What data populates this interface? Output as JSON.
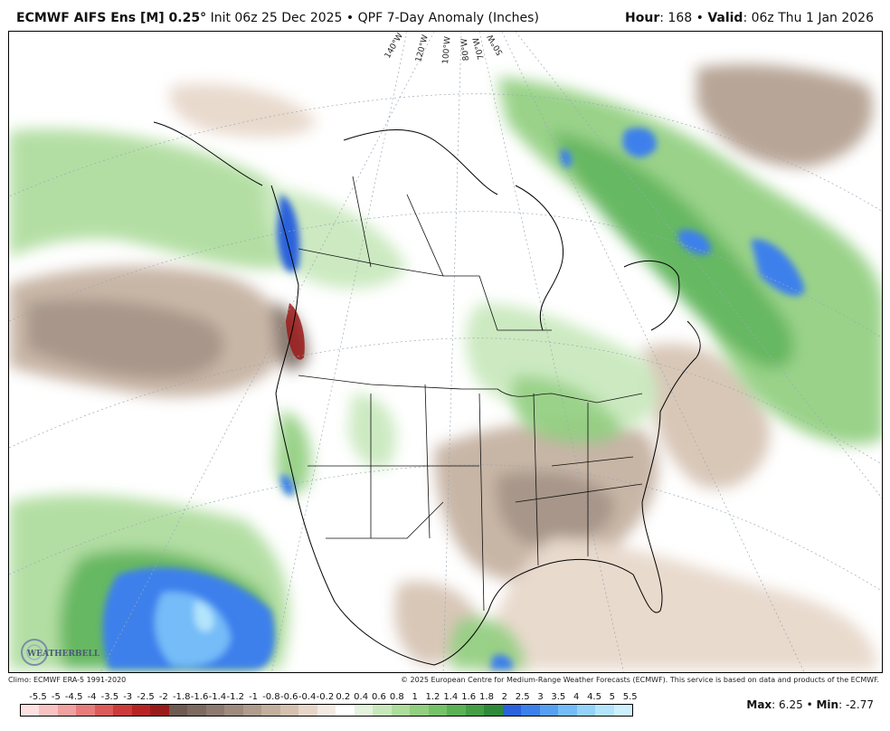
{
  "header": {
    "model": "ECMWF AIFS Ens [M] 0.25",
    "degree": "°",
    "init": "Init 06z 25 Dec 2025",
    "sep": "•",
    "product": "QPF 7-Day Anomaly (Inches)",
    "hour_label": "Hour",
    "hour_value": ": 168",
    "valid_label": "Valid",
    "valid_value": ": 06z Thu 1 Jan 2026"
  },
  "map": {
    "lon_labels": [
      "140°W",
      "120°W",
      "100°W",
      "80°W",
      "70°W",
      "50°W"
    ],
    "logo_text": "WEATHERBELL"
  },
  "footer": {
    "climo": "Climo: ECMWF ERA-5 1991-2020",
    "copyright": "© 2025 European Centre for Medium-Range Weather Forecasts (ECMWF). This service is based on data and products of the ECMWF."
  },
  "colorbar": {
    "labels": [
      "-5.5",
      "-5",
      "-4.5",
      "-4",
      "-3.5",
      "-3",
      "-2.5",
      "-2",
      "-1.8",
      "-1.6",
      "-1.4",
      "-1.2",
      "-1",
      "-0.8",
      "-0.6",
      "-0.4",
      "-0.2",
      "0.2",
      "0.4",
      "0.6",
      "0.8",
      "1",
      "1.2",
      "1.4",
      "1.6",
      "1.8",
      "2",
      "2.5",
      "3",
      "3.5",
      "4",
      "4.5",
      "5",
      "5.5"
    ],
    "colors": [
      "#fde0e0",
      "#f9c2c2",
      "#f2a0a0",
      "#e87c7c",
      "#dc5a5a",
      "#cc3a3a",
      "#b82424",
      "#9a1a1a",
      "#6e5a52",
      "#7c6a60",
      "#8d7a6e",
      "#9e8b7d",
      "#b09c8c",
      "#c2ae9d",
      "#d4c1b0",
      "#e6d6c8",
      "#f3ebe3",
      "#ffffff",
      "#e3f3dc",
      "#c8e8bc",
      "#addc9c",
      "#92cf80",
      "#76c268",
      "#5ab254",
      "#449e44",
      "#2e8a38",
      "#2a62dc",
      "#3c80ec",
      "#56a0f4",
      "#74bcf8",
      "#94d2fa",
      "#b2e4fc",
      "#cdf0fd"
    ]
  },
  "stats": {
    "max_label": "Max",
    "max_value": ": 6.25",
    "min_label": "Min",
    "min_value": ": -2.77",
    "sep": "•"
  }
}
